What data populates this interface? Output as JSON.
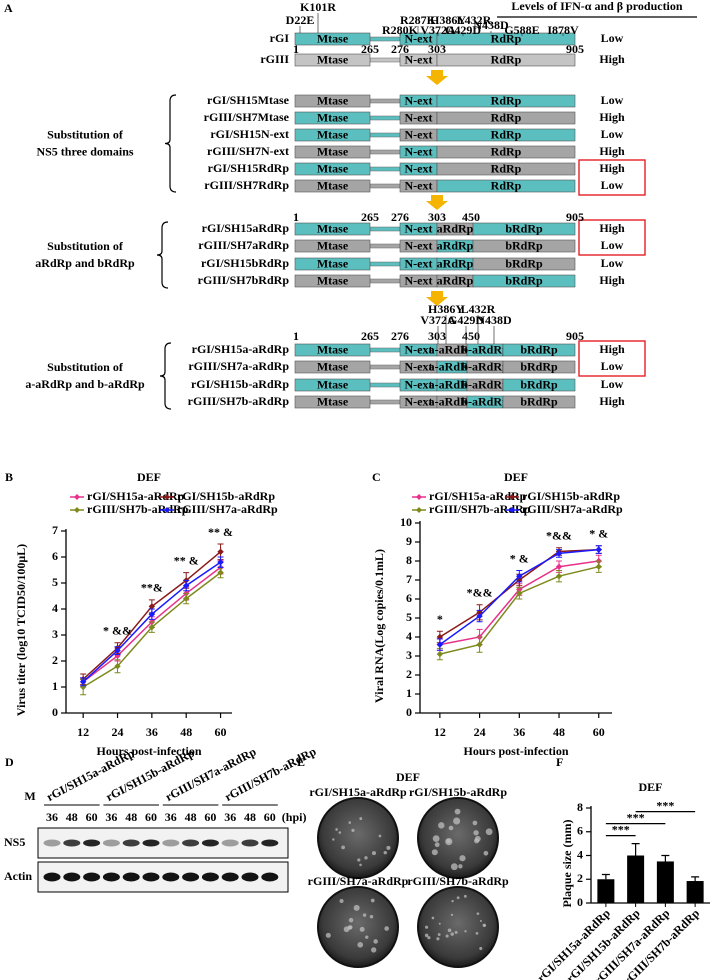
{
  "panel_a": {
    "letter": "A",
    "header": "Levels of IFN-α and β production",
    "sections": [
      {
        "segment_labels": [
          "Mtase",
          "N-ext",
          "RdRp"
        ],
        "positions": [
          1,
          265,
          276,
          303,
          905
        ],
        "mutations": [
          "D22E",
          "K101R",
          "R280K",
          "R287K",
          "V372A",
          "H386Y",
          "G429D",
          "L432R",
          "N438D",
          "G588E",
          "I878V"
        ],
        "rows": [
          {
            "label": "rGI",
            "colors": [
              "#5cbfbf",
              "#5cbfbf",
              "#5cbfbf"
            ],
            "level": "Low",
            "level_color": "#000000"
          },
          {
            "label": "rGIII",
            "colors": [
              "#c4c4c4",
              "#c4c4c4",
              "#c4c4c4"
            ],
            "level": "High",
            "level_color": "#000000"
          }
        ]
      },
      {
        "segment_labels": [
          "Mtase",
          "N-ext",
          "RdRp"
        ],
        "group": [
          "Substitution of",
          "NS5 three domains"
        ],
        "rows": [
          {
            "label": "rGI/SH15Mtase",
            "colors": [
              "#a5a5a5",
              "#5cbfbf",
              "#5cbfbf"
            ],
            "level": "Low",
            "level_color": "#000000"
          },
          {
            "label": "rGIII/SH7Mtase",
            "colors": [
              "#5cbfbf",
              "#a5a5a5",
              "#a5a5a5"
            ],
            "level": "High",
            "level_color": "#000000"
          },
          {
            "label": "rGI/SH15N-ext",
            "colors": [
              "#5cbfbf",
              "#a5a5a5",
              "#5cbfbf"
            ],
            "level": "Low",
            "level_color": "#000000"
          },
          {
            "label": "rGIII/SH7N-ext",
            "colors": [
              "#a5a5a5",
              "#5cbfbf",
              "#a5a5a5"
            ],
            "level": "High",
            "level_color": "#000000"
          },
          {
            "label": "rGI/SH15RdRp",
            "colors": [
              "#5cbfbf",
              "#5cbfbf",
              "#a5a5a5"
            ],
            "level": "High",
            "level_color": "#e31e24"
          },
          {
            "label": "rGIII/SH7RdRp",
            "colors": [
              "#a5a5a5",
              "#a5a5a5",
              "#5cbfbf"
            ],
            "level": "Low",
            "level_color": "#e31e24"
          }
        ]
      },
      {
        "segment_labels": [
          "Mtase",
          "N-ext",
          "aRdRp",
          "bRdRp"
        ],
        "positions": [
          1,
          265,
          276,
          303,
          450,
          905
        ],
        "group": [
          "Substitution of",
          "aRdRp and bRdRp"
        ],
        "rows": [
          {
            "label": "rGI/SH15aRdRp",
            "colors": [
              "#5cbfbf",
              "#5cbfbf",
              "#a5a5a5",
              "#5cbfbf"
            ],
            "level": "High",
            "level_color": "#e31e24"
          },
          {
            "label": "rGIII/SH7aRdRp",
            "colors": [
              "#a5a5a5",
              "#a5a5a5",
              "#5cbfbf",
              "#a5a5a5"
            ],
            "level": "Low",
            "level_color": "#e31e24"
          },
          {
            "label": "rGI/SH15bRdRp",
            "colors": [
              "#5cbfbf",
              "#5cbfbf",
              "#5cbfbf",
              "#a5a5a5"
            ],
            "level": "Low",
            "level_color": "#000000"
          },
          {
            "label": "rGIII/SH7bRdRp",
            "colors": [
              "#a5a5a5",
              "#a5a5a5",
              "#a5a5a5",
              "#5cbfbf"
            ],
            "level": "High",
            "level_color": "#000000"
          }
        ]
      },
      {
        "segment_labels": [
          "Mtase",
          "N-ext",
          "a-aRdRp",
          "b-aRdRp",
          "bRdRp"
        ],
        "positions": [
          1,
          265,
          276,
          303,
          450,
          905
        ],
        "mutations": [
          "H386Y",
          "V372A",
          "L432R",
          "G429D",
          "N438D"
        ],
        "group": [
          "Substitution of",
          "a-aRdRp and b-aRdRp"
        ],
        "rows": [
          {
            "label": "rGI/SH15a-aRdRp",
            "colors": [
              "#5cbfbf",
              "#5cbfbf",
              "#a5a5a5",
              "#5cbfbf",
              "#5cbfbf"
            ],
            "level": "High",
            "level_color": "#e31e24"
          },
          {
            "label": "rGIII/SH7a-aRdRp",
            "colors": [
              "#a5a5a5",
              "#a5a5a5",
              "#5cbfbf",
              "#a5a5a5",
              "#a5a5a5"
            ],
            "level": "Low",
            "level_color": "#e31e24"
          },
          {
            "label": "rGI/SH15b-aRdRp",
            "colors": [
              "#5cbfbf",
              "#5cbfbf",
              "#5cbfbf",
              "#a5a5a5",
              "#5cbfbf"
            ],
            "level": "Low",
            "level_color": "#000000"
          },
          {
            "label": "rGIII/SH7b-aRdRp",
            "colors": [
              "#a5a5a5",
              "#a5a5a5",
              "#a5a5a5",
              "#5cbfbf",
              "#a5a5a5"
            ],
            "level": "High",
            "level_color": "#000000"
          }
        ]
      }
    ]
  },
  "chart_data": [
    {
      "type": "line",
      "panel": "B",
      "title": "DEF",
      "x_label": "Hours post-infection",
      "y_label": "Virus titer (log10 TCID50/100μL)",
      "x": [
        12,
        24,
        36,
        48,
        60
      ],
      "xlim": [
        6,
        64
      ],
      "xticks": [
        12,
        24,
        36,
        48,
        60
      ],
      "ylim": [
        0,
        7
      ],
      "yticks": [
        0,
        1,
        2,
        3,
        4,
        5,
        6,
        7
      ],
      "series": [
        {
          "name": "rGI/SH15a-aRdRp",
          "color": "#e8318a",
          "values": [
            1.2,
            2.2,
            3.5,
            4.6,
            5.6
          ],
          "errors": [
            0.15,
            0.2,
            0.2,
            0.25,
            0.25
          ]
        },
        {
          "name": "rGI/SH15b-aRdRp",
          "color": "#8b1a1a",
          "values": [
            1.3,
            2.5,
            4.1,
            5.1,
            6.2
          ],
          "errors": [
            0.2,
            0.2,
            0.25,
            0.3,
            0.3
          ]
        },
        {
          "name": "rGIII/SH7b-aRdRp",
          "color": "#7f8a1e",
          "values": [
            1.0,
            1.8,
            3.3,
            4.4,
            5.4
          ],
          "errors": [
            0.3,
            0.25,
            0.2,
            0.2,
            0.2
          ]
        },
        {
          "name": "rGIII/SH7a-aRdRp",
          "color": "#1a1aff",
          "values": [
            1.2,
            2.4,
            3.8,
            4.9,
            5.8
          ],
          "errors": [
            0.15,
            0.15,
            0.2,
            0.2,
            0.2
          ]
        }
      ],
      "annotations": [
        {
          "x": 24,
          "text": "* &&"
        },
        {
          "x": 36,
          "text": "**&"
        },
        {
          "x": 48,
          "text": "** &"
        },
        {
          "x": 60,
          "text": "** &"
        }
      ]
    },
    {
      "type": "line",
      "panel": "C",
      "title": "DEF",
      "x_label": "Hours post-infection",
      "y_label": "Viral RNA(Log copies/0.1mL)",
      "x": [
        12,
        24,
        36,
        48,
        60
      ],
      "xlim": [
        6,
        64
      ],
      "xticks": [
        12,
        24,
        36,
        48,
        60
      ],
      "ylim": [
        0,
        10
      ],
      "yticks": [
        0,
        1,
        2,
        3,
        4,
        5,
        6,
        7,
        8,
        9,
        10
      ],
      "series": [
        {
          "name": "rGI/SH15a-aRdRp",
          "color": "#e8318a",
          "values": [
            3.6,
            4.0,
            6.5,
            7.7,
            8.0
          ],
          "errors": [
            0.3,
            0.4,
            0.3,
            0.3,
            0.3
          ]
        },
        {
          "name": "rGI/SH15b-aRdRp",
          "color": "#8b1a1a",
          "values": [
            4.0,
            5.3,
            7.0,
            8.5,
            8.6
          ],
          "errors": [
            0.3,
            0.4,
            0.3,
            0.2,
            0.2
          ]
        },
        {
          "name": "rGIII/SH7b-aRdRp",
          "color": "#7f8a1e",
          "values": [
            3.1,
            3.6,
            6.3,
            7.2,
            7.7
          ],
          "errors": [
            0.3,
            0.4,
            0.3,
            0.3,
            0.3
          ]
        },
        {
          "name": "rGIII/SH7a-aRdRp",
          "color": "#1a1aff",
          "values": [
            3.6,
            5.1,
            7.2,
            8.4,
            8.6
          ],
          "errors": [
            0.3,
            0.3,
            0.3,
            0.2,
            0.2
          ]
        }
      ],
      "annotations": [
        {
          "x": 12,
          "text": "*"
        },
        {
          "x": 24,
          "text": "*&&"
        },
        {
          "x": 36,
          "text": "* &"
        },
        {
          "x": 48,
          "text": "*&&"
        },
        {
          "x": 60,
          "text": "* &"
        }
      ]
    },
    {
      "type": "bar",
      "panel": "F",
      "title": "DEF",
      "y_label": "Plaque size (mm)",
      "categories": [
        "rGI/SH15a-aRdRp",
        "rGI/SH15b-aRdRp",
        "rGIII/SH7a-aRdRp",
        "rGIII/SH7b-aRdRp"
      ],
      "values": [
        2.0,
        4.0,
        3.5,
        1.85
      ],
      "errors": [
        0.4,
        1.0,
        0.5,
        0.35
      ],
      "color": "#000000",
      "ylim": [
        0,
        8
      ],
      "yticks": [
        0,
        2,
        4,
        6,
        8
      ],
      "comparisons": [
        {
          "between": [
            "rGI/SH15a-aRdRp",
            "rGI/SH15b-aRdRp"
          ],
          "label": "***"
        },
        {
          "between": [
            "rGI/SH15a-aRdRp",
            "rGIII/SH7a-aRdRp"
          ],
          "label": "***"
        },
        {
          "between": [
            "rGI/SH15b-aRdRp",
            "rGIII/SH7b-aRdRp"
          ],
          "label": "***"
        }
      ]
    }
  ],
  "panel_d": {
    "letter": "D",
    "marker": "M",
    "groups": [
      "rGI/SH15a-aRdRp",
      "rGI/SH15b-aRdRp",
      "rGIII/SH7a-aRdRp",
      "rGIII/SH7b-aRdRp"
    ],
    "times": [
      36,
      48,
      60
    ],
    "time_unit": "(hpi)",
    "rows": [
      "NS5",
      "Actin"
    ]
  },
  "panel_e": {
    "letter": "E",
    "title": "DEF",
    "plates": [
      "rGI/SH15a-aRdRp",
      "rGI/SH15b-aRdRp",
      "rGIII/SH7a-aRdRp",
      "rGIII/SH7b-aRdRp"
    ]
  }
}
